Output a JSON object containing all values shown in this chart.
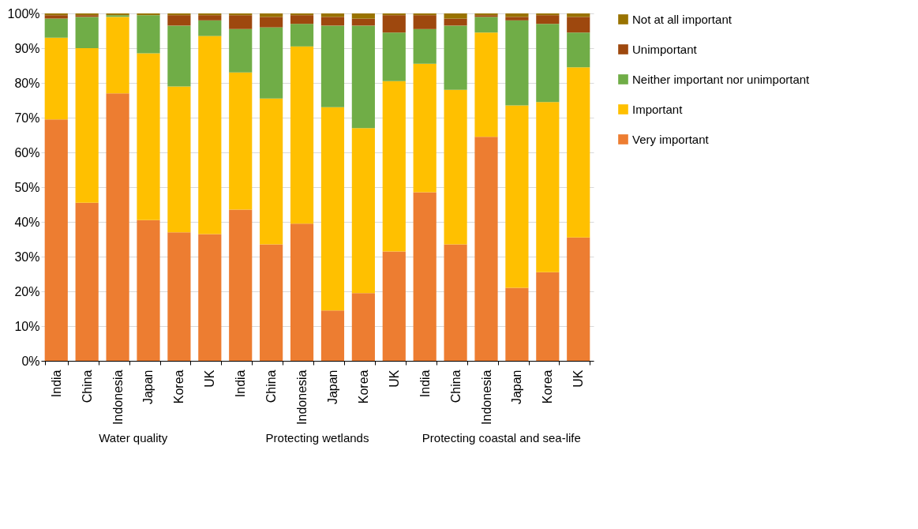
{
  "chart_data": {
    "type": "bar",
    "stacked": true,
    "categories": [
      "India",
      "China",
      "Indonesia",
      "Japan",
      "Korea",
      "UK",
      "India",
      "China",
      "Indonesia",
      "Japan",
      "Korea",
      "UK",
      "India",
      "China",
      "Indonesia",
      "Japan",
      "Korea",
      "UK"
    ],
    "series": [
      {
        "name": "Very important",
        "color": "#ed7d31",
        "values": [
          69.5,
          45.5,
          77,
          40.5,
          37,
          36.5,
          43.5,
          33.5,
          39.5,
          14.5,
          19.5,
          31.5,
          48.5,
          33.5,
          64.5,
          21,
          25.5,
          35.5
        ]
      },
      {
        "name": "Important",
        "color": "#ffc000",
        "values": [
          23.5,
          44.5,
          22,
          48,
          42,
          57,
          39.5,
          42,
          51,
          58.5,
          47.5,
          49,
          37,
          44.5,
          30,
          52.5,
          49,
          49
        ]
      },
      {
        "name": "Neither important nor unimportant",
        "color": "#70ad47",
        "values": [
          5.5,
          9,
          0.5,
          11,
          17.5,
          4.5,
          12.5,
          20.5,
          6.5,
          23.5,
          29.5,
          14,
          10,
          18.5,
          4.5,
          24.5,
          22.5,
          10
        ]
      },
      {
        "name": "Unimportant",
        "color": "#9e480e",
        "values": [
          1,
          0.5,
          0,
          0,
          3,
          1.5,
          4,
          3,
          2.5,
          2.5,
          2,
          5,
          4,
          2,
          0.5,
          1,
          2.5,
          4.5
        ]
      },
      {
        "name": "Not at all important",
        "color": "#997300",
        "values": [
          0.5,
          0.5,
          0.5,
          0.5,
          0.5,
          0.5,
          0.5,
          1,
          0.5,
          1,
          1.5,
          0.5,
          0.5,
          1.5,
          0.5,
          1,
          0.5,
          1
        ]
      }
    ],
    "ylim": [
      0,
      100
    ],
    "yticks": [
      {
        "value": 0,
        "label": "0%"
      },
      {
        "value": 10,
        "label": "10%"
      },
      {
        "value": 20,
        "label": "20%"
      },
      {
        "value": 30,
        "label": "30%"
      },
      {
        "value": 40,
        "label": "40%"
      },
      {
        "value": 50,
        "label": "50%"
      },
      {
        "value": 60,
        "label": "60%"
      },
      {
        "value": 70,
        "label": "70%"
      },
      {
        "value": 80,
        "label": "80%"
      },
      {
        "value": 90,
        "label": "90%"
      },
      {
        "value": 100,
        "label": "100%"
      }
    ],
    "grid": "y",
    "legend": "right",
    "annotations": [
      "Water quality",
      "Protecting wetlands",
      "Protecting coastal and sea-life"
    ]
  }
}
